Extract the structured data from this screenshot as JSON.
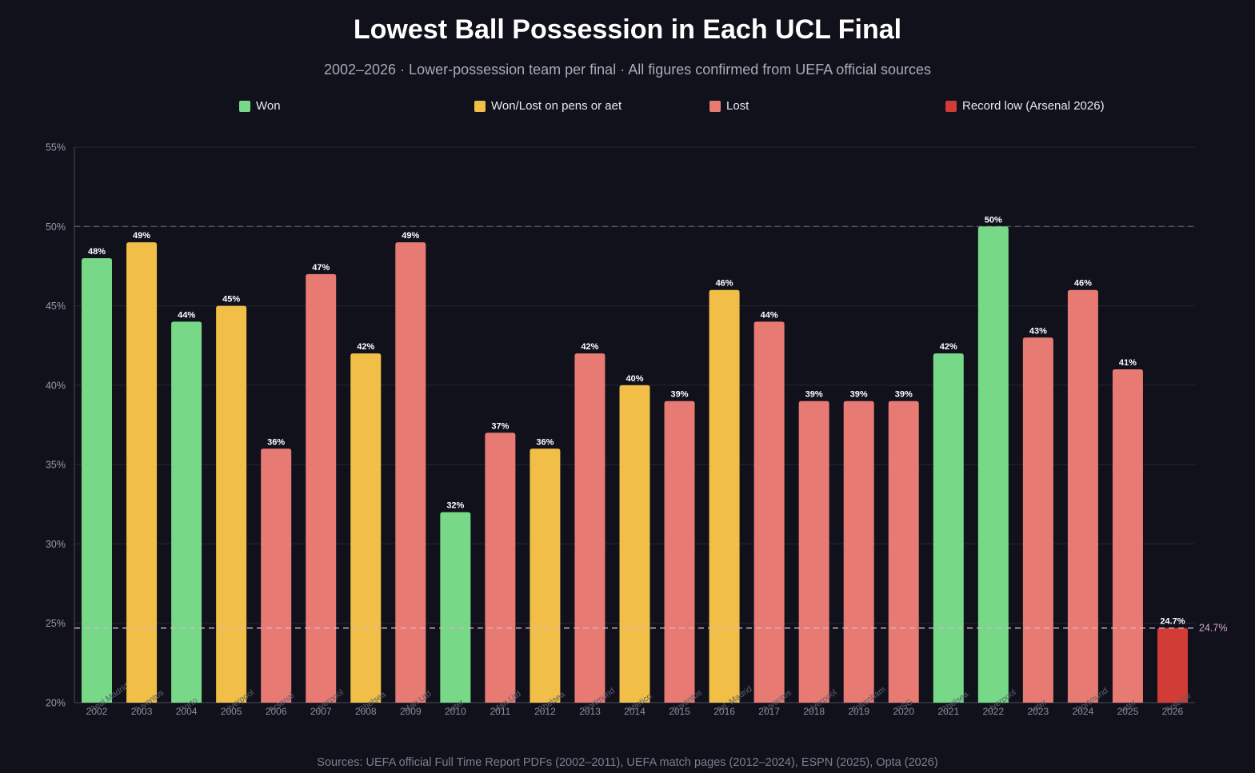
{
  "title": "Lowest Ball Possession in Each UCL Final",
  "subtitle": "2002–2026  ·  Lower-possession team per final  ·  All figures confirmed from UEFA official sources",
  "legend": [
    {
      "label": "Won",
      "color": "#77d987"
    },
    {
      "label": "Won/Lost on pens or aet",
      "color": "#f1bf48"
    },
    {
      "label": "Lost",
      "color": "#e87a74"
    },
    {
      "label": "Record low (Arsenal 2026)",
      "color": "#d13c36"
    }
  ],
  "source": "Sources: UEFA official Full Time Report PDFs (2002–2011), UEFA match pages (2012–2024), ESPN (2025), Opta (2026)",
  "colors": {
    "won": "#77d987",
    "pens": "#f1bf48",
    "lost": "#e87a74",
    "record": "#d13c36",
    "background": "#10111b",
    "grid": "#272836",
    "reference_line": "#d9b2cf",
    "fifty_line": "#5b5c6b"
  },
  "chart_data": {
    "type": "bar",
    "title": "Lowest Ball Possession in Each UCL Final",
    "xlabel": "",
    "ylabel": "",
    "ylim": [
      20,
      55
    ],
    "yticks": [
      "20%",
      "25%",
      "30%",
      "35%",
      "40%",
      "45%",
      "50%",
      "55%"
    ],
    "grid": true,
    "legend_position": "top",
    "reference_lines": [
      {
        "value": 50,
        "label": ""
      },
      {
        "value": 24.7,
        "label": "24.7%"
      }
    ],
    "categories": [
      "2002",
      "2003",
      "2004",
      "2005",
      "2006",
      "2007",
      "2008",
      "2009",
      "2010",
      "2011",
      "2012",
      "2013",
      "2014",
      "2015",
      "2016",
      "2017",
      "2018",
      "2019",
      "2020",
      "2021",
      "2022",
      "2023",
      "2024",
      "2025",
      "2026"
    ],
    "teams": [
      "Real Madrid",
      "Juventus",
      "Porto",
      "Liverpool",
      "Arsenal",
      "Liverpool",
      "Chelsea",
      "Man Utd",
      "Inter",
      "Man Utd",
      "Chelsea",
      "Dortmund",
      "Atletico",
      "Juventus",
      "Atl. Madrid",
      "Juventus",
      "Liverpool",
      "Tottenham",
      "PSG",
      "Chelsea",
      "Liverpool",
      "Inter",
      "Dortmund",
      "Inter",
      "Arsenal"
    ],
    "values": [
      48,
      49,
      44,
      45,
      36,
      47,
      42,
      49,
      32,
      37,
      36,
      42,
      40,
      39,
      46,
      44,
      39,
      39,
      39,
      42,
      50,
      43,
      46,
      41,
      24.7
    ],
    "value_labels": [
      "48%",
      "49%",
      "44%",
      "45%",
      "36%",
      "47%",
      "42%",
      "49%",
      "32%",
      "37%",
      "36%",
      "42%",
      "40%",
      "39%",
      "46%",
      "44%",
      "39%",
      "39%",
      "39%",
      "42%",
      "50%",
      "43%",
      "46%",
      "41%",
      "24.7%"
    ],
    "outcome": [
      "won",
      "pens",
      "won",
      "pens",
      "lost",
      "lost",
      "pens",
      "lost",
      "won",
      "lost",
      "pens",
      "lost",
      "pens",
      "lost",
      "pens",
      "lost",
      "lost",
      "lost",
      "lost",
      "won",
      "won",
      "lost",
      "lost",
      "lost",
      "record"
    ]
  }
}
